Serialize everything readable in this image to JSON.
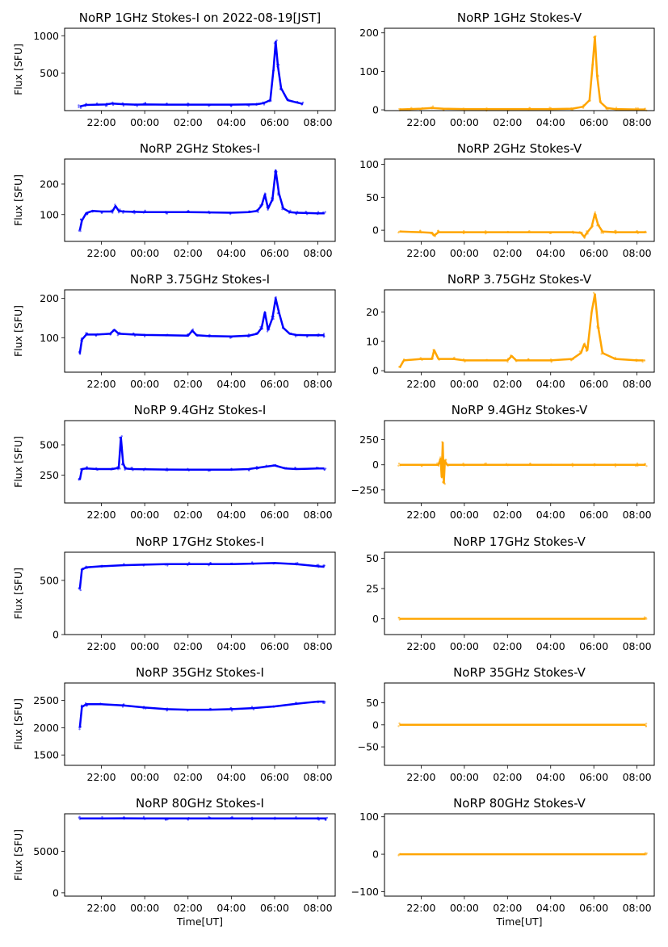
{
  "figure": {
    "colors": {
      "stokes_i": "#0000ff",
      "stokes_v": "#ffa500"
    }
  },
  "chart_data": [
    {
      "type": "scatter",
      "title": "NoRP 1GHz Stokes-I on 2022-08-19[JST]",
      "ylabel": "Flux [SFU]",
      "xlabel": "",
      "xlim": [
        20.3,
        32.8
      ],
      "ylim": [
        0,
        1100
      ],
      "xticks": [
        22,
        24,
        26,
        28,
        30,
        32
      ],
      "xticklabels": [
        "22:00",
        "00:00",
        "02:00",
        "04:00",
        "06:00",
        "08:00"
      ],
      "yticks": [
        500,
        1000
      ],
      "yticklabels": [
        "500",
        "1000"
      ],
      "series": [
        {
          "color": "#0000ff",
          "x": [
            21.0,
            21.3,
            21.8,
            22.2,
            22.5,
            23.0,
            23.6,
            24.0,
            25.0,
            26.0,
            27.0,
            28.0,
            28.8,
            29.2,
            29.5,
            29.8,
            29.95,
            30.05,
            30.15,
            30.3,
            30.6,
            31.0,
            31.3
          ],
          "y": [
            55,
            75,
            80,
            82,
            95,
            85,
            80,
            82,
            80,
            80,
            80,
            80,
            82,
            85,
            100,
            140,
            550,
            920,
            600,
            300,
            140,
            110,
            90
          ]
        }
      ]
    },
    {
      "type": "scatter",
      "title": "NoRP 1GHz Stokes-V",
      "ylabel": "",
      "xlabel": "",
      "xlim": [
        20.3,
        32.8
      ],
      "ylim": [
        -2,
        212
      ],
      "xticks": [
        22,
        24,
        26,
        28,
        30,
        32
      ],
      "xticklabels": [
        "22:00",
        "00:00",
        "02:00",
        "04:00",
        "06:00",
        "08:00"
      ],
      "yticks": [
        0,
        100,
        200
      ],
      "yticklabels": [
        "0",
        "100",
        "200"
      ],
      "series": [
        {
          "color": "#ffa500",
          "x": [
            21.0,
            21.5,
            22.0,
            22.5,
            23.0,
            24.0,
            25.0,
            26.0,
            27.0,
            28.0,
            29.0,
            29.5,
            29.8,
            29.95,
            30.05,
            30.15,
            30.3,
            30.6,
            31.0,
            32.0,
            32.4
          ],
          "y": [
            1,
            2,
            3,
            5,
            3,
            2,
            2,
            2,
            2,
            2,
            3,
            8,
            25,
            120,
            190,
            90,
            20,
            5,
            2,
            1,
            1
          ]
        }
      ]
    },
    {
      "type": "scatter",
      "title": "NoRP 2GHz Stokes-I",
      "ylabel": "Flux [SFU]",
      "xlabel": "",
      "xlim": [
        20.3,
        32.8
      ],
      "ylim": [
        12,
        282
      ],
      "xticks": [
        22,
        24,
        26,
        28,
        30,
        32
      ],
      "xticklabels": [
        "22:00",
        "00:00",
        "02:00",
        "04:00",
        "06:00",
        "08:00"
      ],
      "yticks": [
        100,
        200
      ],
      "yticklabels": [
        "100",
        "200"
      ],
      "series": [
        {
          "color": "#0000ff",
          "x": [
            21.0,
            21.1,
            21.3,
            21.6,
            22.0,
            22.5,
            22.65,
            22.8,
            23.0,
            23.5,
            24.0,
            25.0,
            26.0,
            27.0,
            28.0,
            28.8,
            29.2,
            29.4,
            29.55,
            29.7,
            29.9,
            30.05,
            30.2,
            30.4,
            30.7,
            31.0,
            31.5,
            32.0,
            32.3
          ],
          "y": [
            48,
            80,
            105,
            112,
            110,
            110,
            128,
            112,
            110,
            109,
            108,
            108,
            108,
            107,
            106,
            108,
            112,
            130,
            165,
            120,
            150,
            245,
            170,
            120,
            108,
            106,
            105,
            104,
            104
          ]
        }
      ]
    },
    {
      "type": "scatter",
      "title": "NoRP 2GHz Stokes-V",
      "ylabel": "",
      "xlabel": "",
      "xlim": [
        20.3,
        32.8
      ],
      "ylim": [
        -17,
        108
      ],
      "xticks": [
        22,
        24,
        26,
        28,
        30,
        32
      ],
      "xticklabels": [
        "22:00",
        "00:00",
        "02:00",
        "04:00",
        "06:00",
        "08:00"
      ],
      "yticks": [
        0,
        50,
        100
      ],
      "yticklabels": [
        "0",
        "50",
        "100"
      ],
      "series": [
        {
          "color": "#ffa500",
          "x": [
            21.0,
            22.0,
            22.5,
            22.6,
            22.8,
            24.0,
            25.0,
            26.0,
            27.0,
            28.0,
            29.0,
            29.4,
            29.55,
            29.7,
            29.9,
            30.05,
            30.2,
            30.4,
            31.0,
            32.0,
            32.4
          ],
          "y": [
            -2,
            -3,
            -4,
            -8,
            -3,
            -3,
            -3,
            -3,
            -3,
            -3,
            -3,
            -4,
            -10,
            -3,
            5,
            25,
            8,
            -2,
            -3,
            -3,
            -3
          ]
        }
      ]
    },
    {
      "type": "scatter",
      "title": "NoRP 3.75GHz Stokes-I",
      "ylabel": "Flux [SFU]",
      "xlabel": "",
      "xlim": [
        20.3,
        32.8
      ],
      "ylim": [
        12,
        222
      ],
      "xticks": [
        22,
        24,
        26,
        28,
        30,
        32
      ],
      "xticklabels": [
        "22:00",
        "00:00",
        "02:00",
        "04:00",
        "06:00",
        "08:00"
      ],
      "yticks": [
        100,
        200
      ],
      "yticklabels": [
        "100",
        "200"
      ],
      "series": [
        {
          "color": "#0000ff",
          "x": [
            21.0,
            21.1,
            21.3,
            21.8,
            22.4,
            22.6,
            22.8,
            23.5,
            24.0,
            25.0,
            26.0,
            26.2,
            26.4,
            27.0,
            28.0,
            28.8,
            29.2,
            29.4,
            29.55,
            29.7,
            29.9,
            30.05,
            30.2,
            30.4,
            30.7,
            31.0,
            31.5,
            32.0,
            32.3
          ],
          "y": [
            60,
            95,
            108,
            108,
            110,
            120,
            110,
            108,
            107,
            106,
            105,
            118,
            106,
            104,
            103,
            105,
            110,
            125,
            165,
            120,
            150,
            200,
            165,
            125,
            110,
            107,
            106,
            106,
            106
          ]
        }
      ]
    },
    {
      "type": "scatter",
      "title": "NoRP 3.75GHz Stokes-V",
      "ylabel": "",
      "xlabel": "",
      "xlim": [
        20.3,
        32.8
      ],
      "ylim": [
        -0.5,
        27.5
      ],
      "xticks": [
        22,
        24,
        26,
        28,
        30,
        32
      ],
      "xticklabels": [
        "22:00",
        "00:00",
        "02:00",
        "04:00",
        "06:00",
        "08:00"
      ],
      "yticks": [
        0,
        10,
        20
      ],
      "yticklabels": [
        "0",
        "10",
        "20"
      ],
      "series": [
        {
          "color": "#ffa500",
          "x": [
            21.0,
            21.2,
            22.0,
            22.5,
            22.6,
            22.8,
            23.5,
            24.0,
            25.0,
            26.0,
            26.2,
            26.4,
            27.0,
            28.0,
            29.0,
            29.4,
            29.55,
            29.7,
            29.9,
            30.05,
            30.2,
            30.4,
            31.0,
            32.0,
            32.3
          ],
          "y": [
            1,
            3.5,
            4,
            4,
            7,
            4,
            4,
            3.5,
            3.5,
            3.5,
            5,
            3.5,
            3.5,
            3.5,
            4,
            6,
            9,
            7,
            20,
            26,
            15,
            6,
            4,
            3.5,
            3.5
          ]
        }
      ]
    },
    {
      "type": "scatter",
      "title": "NoRP 9.4GHz Stokes-I",
      "ylabel": "Flux [SFU]",
      "xlabel": "",
      "xlim": [
        20.3,
        32.8
      ],
      "ylim": [
        20,
        700
      ],
      "xticks": [
        22,
        24,
        26,
        28,
        30,
        32
      ],
      "xticklabels": [
        "22:00",
        "00:00",
        "02:00",
        "04:00",
        "06:00",
        "08:00"
      ],
      "yticks": [
        250,
        500
      ],
      "yticklabels": [
        "250",
        "500"
      ],
      "series": [
        {
          "color": "#0000ff",
          "x": [
            21.0,
            21.1,
            21.3,
            21.8,
            22.5,
            22.8,
            22.9,
            23.0,
            23.1,
            23.4,
            24.0,
            25.0,
            26.0,
            27.0,
            28.0,
            28.8,
            29.2,
            29.6,
            30.0,
            30.5,
            31.0,
            32.0,
            32.3
          ],
          "y": [
            210,
            300,
            305,
            300,
            300,
            310,
            560,
            350,
            305,
            300,
            298,
            296,
            295,
            295,
            295,
            300,
            310,
            320,
            330,
            305,
            300,
            305,
            305
          ]
        }
      ]
    },
    {
      "type": "scatter",
      "title": "NoRP 9.4GHz Stokes-V",
      "ylabel": "",
      "xlabel": "",
      "xlim": [
        20.3,
        32.8
      ],
      "ylim": [
        -380,
        440
      ],
      "xticks": [
        22,
        24,
        26,
        28,
        30,
        32
      ],
      "xticklabels": [
        "22:00",
        "00:00",
        "02:00",
        "04:00",
        "06:00",
        "08:00"
      ],
      "yticks": [
        -250,
        0,
        250
      ],
      "yticklabels": [
        "−250",
        "0",
        "250"
      ],
      "series": [
        {
          "color": "#ffa500",
          "x": [
            21.0,
            22.0,
            22.8,
            22.9,
            22.95,
            23.0,
            23.05,
            23.1,
            23.2,
            24.0,
            25.0,
            26.0,
            27.0,
            28.0,
            29.0,
            30.0,
            31.0,
            32.0,
            32.4
          ],
          "y": [
            0,
            0,
            0,
            60,
            -120,
            220,
            -180,
            40,
            0,
            0,
            0,
            0,
            0,
            0,
            0,
            0,
            0,
            0,
            0
          ]
        }
      ]
    },
    {
      "type": "scatter",
      "title": "NoRP 17GHz Stokes-I",
      "ylabel": "Flux [SFU]",
      "xlabel": "",
      "xlim": [
        20.3,
        32.8
      ],
      "ylim": [
        0,
        760
      ],
      "xticks": [
        22,
        24,
        26,
        28,
        30,
        32
      ],
      "xticklabels": [
        "22:00",
        "00:00",
        "02:00",
        "04:00",
        "06:00",
        "08:00"
      ],
      "yticks": [
        0,
        500
      ],
      "yticklabels": [
        "0",
        "500"
      ],
      "series": [
        {
          "color": "#0000ff",
          "x": [
            21.0,
            21.1,
            21.3,
            22.0,
            23.0,
            24.0,
            25.0,
            26.0,
            27.0,
            28.0,
            29.0,
            30.0,
            31.0,
            32.0,
            32.3
          ],
          "y": [
            420,
            600,
            620,
            630,
            640,
            645,
            650,
            650,
            650,
            650,
            655,
            660,
            650,
            630,
            625
          ]
        }
      ]
    },
    {
      "type": "scatter",
      "title": "NoRP 17GHz Stokes-V",
      "ylabel": "",
      "xlabel": "",
      "xlim": [
        20.3,
        32.8
      ],
      "ylim": [
        -13,
        55
      ],
      "xticks": [
        22,
        24,
        26,
        28,
        30,
        32
      ],
      "xticklabels": [
        "22:00",
        "00:00",
        "02:00",
        "04:00",
        "06:00",
        "08:00"
      ],
      "yticks": [
        0,
        25,
        50
      ],
      "yticklabels": [
        "0",
        "25",
        "50"
      ],
      "series": [
        {
          "color": "#ffa500",
          "x": [
            21.0,
            32.4
          ],
          "y": [
            0,
            0
          ]
        }
      ]
    },
    {
      "type": "scatter",
      "title": "NoRP 35GHz Stokes-I",
      "ylabel": "Flux [SFU]",
      "xlabel": "",
      "xlim": [
        20.3,
        32.8
      ],
      "ylim": [
        1310,
        2820
      ],
      "xticks": [
        22,
        24,
        26,
        28,
        30,
        32
      ],
      "xticklabels": [
        "22:00",
        "00:00",
        "02:00",
        "04:00",
        "06:00",
        "08:00"
      ],
      "yticks": [
        1500,
        2000,
        2500
      ],
      "yticklabels": [
        "1500",
        "2000",
        "2500"
      ],
      "series": [
        {
          "color": "#0000ff",
          "x": [
            21.0,
            21.1,
            21.3,
            22.0,
            23.0,
            24.0,
            25.0,
            26.0,
            27.0,
            28.0,
            29.0,
            30.0,
            31.0,
            32.0,
            32.3
          ],
          "y": [
            2000,
            2380,
            2430,
            2430,
            2410,
            2370,
            2340,
            2330,
            2330,
            2340,
            2360,
            2390,
            2440,
            2480,
            2480
          ]
        }
      ]
    },
    {
      "type": "scatter",
      "title": "NoRP 35GHz Stokes-V",
      "ylabel": "",
      "xlabel": "",
      "xlim": [
        20.3,
        32.8
      ],
      "ylim": [
        -92,
        95
      ],
      "xticks": [
        22,
        24,
        26,
        28,
        30,
        32
      ],
      "xticklabels": [
        "22:00",
        "00:00",
        "02:00",
        "04:00",
        "06:00",
        "08:00"
      ],
      "yticks": [
        -50,
        0,
        50
      ],
      "yticklabels": [
        "−50",
        "0",
        "50"
      ],
      "series": [
        {
          "color": "#ffa500",
          "x": [
            21.0,
            32.4
          ],
          "y": [
            0,
            0
          ]
        }
      ]
    },
    {
      "type": "scatter",
      "title": "NoRP 80GHz Stokes-I",
      "ylabel": "Flux [SFU]",
      "xlabel": "Time[UT]",
      "xlim": [
        20.3,
        32.8
      ],
      "ylim": [
        -400,
        9500
      ],
      "xticks": [
        22,
        24,
        26,
        28,
        30,
        32
      ],
      "xticklabels": [
        "22:00",
        "00:00",
        "02:00",
        "04:00",
        "06:00",
        "08:00"
      ],
      "yticks": [
        0,
        5000
      ],
      "yticklabels": [
        "0",
        "5000"
      ],
      "series": [
        {
          "color": "#0000ff",
          "x": [
            21.0,
            22.0,
            23.0,
            24.0,
            25.0,
            26.0,
            27.0,
            28.0,
            29.0,
            30.0,
            31.0,
            32.0,
            32.4
          ],
          "y": [
            8950,
            8950,
            8960,
            8950,
            8950,
            8950,
            8950,
            8950,
            8950,
            8950,
            8950,
            8950,
            8950
          ]
        }
      ]
    },
    {
      "type": "scatter",
      "title": "NoRP 80GHz Stokes-V",
      "ylabel": "",
      "xlabel": "Time[UT]",
      "xlim": [
        20.3,
        32.8
      ],
      "ylim": [
        -112,
        108
      ],
      "xticks": [
        22,
        24,
        26,
        28,
        30,
        32
      ],
      "xticklabels": [
        "22:00",
        "00:00",
        "02:00",
        "04:00",
        "06:00",
        "08:00"
      ],
      "yticks": [
        -100,
        0,
        100
      ],
      "yticklabels": [
        "−100",
        "0",
        "100"
      ],
      "series": [
        {
          "color": "#ffa500",
          "x": [
            21.0,
            32.4
          ],
          "y": [
            0,
            0
          ]
        }
      ]
    }
  ]
}
